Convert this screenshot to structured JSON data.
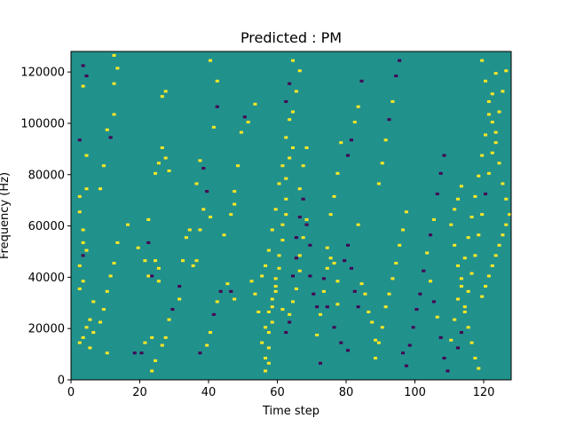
{
  "chart_data": {
    "type": "heatmap",
    "title": "Predicted : PM",
    "xlabel": "Time step",
    "ylabel": "Frequency (Hz)",
    "xlim": [
      0,
      128
    ],
    "ylim": [
      0,
      128000
    ],
    "x_ticks": [
      0,
      20,
      40,
      60,
      80,
      100,
      120
    ],
    "y_ticks": [
      0,
      20000,
      40000,
      60000,
      80000,
      100000,
      120000
    ],
    "x_tick_labels": [
      "0",
      "20",
      "40",
      "60",
      "80",
      "100",
      "120"
    ],
    "y_tick_labels": [
      "0",
      "20000",
      "40000",
      "60000",
      "80000",
      "100000",
      "120000"
    ],
    "grid": false,
    "colormap": "viridis",
    "colors": {
      "background": "#21918c",
      "high": "#fde725",
      "low": "#440154"
    },
    "value_range": [
      -1,
      1
    ],
    "cells": [
      [
        2,
        14,
        1
      ],
      [
        3,
        16,
        1
      ],
      [
        4,
        20,
        1
      ],
      [
        5,
        23,
        1
      ],
      [
        6,
        30,
        1
      ],
      [
        2,
        35,
        1
      ],
      [
        3,
        38,
        1
      ],
      [
        2,
        44,
        1
      ],
      [
        3,
        48,
        -1
      ],
      [
        4,
        50,
        1
      ],
      [
        3,
        53,
        1
      ],
      [
        3,
        58,
        1
      ],
      [
        2,
        65,
        1
      ],
      [
        2,
        71,
        1
      ],
      [
        4,
        74,
        1
      ],
      [
        4,
        87,
        1
      ],
      [
        2,
        93,
        -1
      ],
      [
        3,
        114,
        1
      ],
      [
        4,
        118,
        -1
      ],
      [
        3,
        122,
        -1
      ],
      [
        5,
        12,
        1
      ],
      [
        6,
        18,
        1
      ],
      [
        8,
        22,
        1
      ],
      [
        9,
        27,
        1
      ],
      [
        10,
        34,
        1
      ],
      [
        11,
        40,
        1
      ],
      [
        12,
        45,
        1
      ],
      [
        13,
        53,
        1
      ],
      [
        16,
        60,
        1
      ],
      [
        19,
        51,
        1
      ],
      [
        8,
        74,
        1
      ],
      [
        9,
        83,
        1
      ],
      [
        10,
        97,
        1
      ],
      [
        11,
        94,
        -1
      ],
      [
        12,
        103,
        1
      ],
      [
        12,
        115,
        1
      ],
      [
        13,
        121,
        1
      ],
      [
        12,
        126,
        1
      ],
      [
        10,
        10,
        1
      ],
      [
        18,
        10,
        -1
      ],
      [
        20,
        10,
        -1
      ],
      [
        21,
        14,
        1
      ],
      [
        23,
        16,
        1
      ],
      [
        22,
        40,
        1
      ],
      [
        21,
        46,
        1
      ],
      [
        23,
        40,
        -1
      ],
      [
        25,
        43,
        1
      ],
      [
        24,
        46,
        1
      ],
      [
        25,
        38,
        1
      ],
      [
        22,
        53,
        -1
      ],
      [
        22,
        62,
        1
      ],
      [
        24,
        80,
        1
      ],
      [
        25,
        84,
        1
      ],
      [
        26,
        90,
        1
      ],
      [
        27,
        86,
        1
      ],
      [
        28,
        81,
        1
      ],
      [
        26,
        110,
        1
      ],
      [
        27,
        112,
        1
      ],
      [
        23,
        3,
        1
      ],
      [
        24,
        7,
        1
      ],
      [
        26,
        13,
        1
      ],
      [
        27,
        16,
        1
      ],
      [
        28,
        23,
        1
      ],
      [
        29,
        27,
        -1
      ],
      [
        31,
        31,
        1
      ],
      [
        31,
        36,
        -1
      ],
      [
        32,
        46,
        1
      ],
      [
        33,
        55,
        1
      ],
      [
        34,
        58,
        1
      ],
      [
        35,
        44,
        1
      ],
      [
        36,
        46,
        1
      ],
      [
        37,
        58,
        1
      ],
      [
        38,
        66,
        1
      ],
      [
        40,
        63,
        1
      ],
      [
        36,
        76,
        1
      ],
      [
        37,
        85,
        1
      ],
      [
        38,
        82,
        -1
      ],
      [
        39,
        73,
        -1
      ],
      [
        41,
        98,
        1
      ],
      [
        42,
        106,
        -1
      ],
      [
        42,
        116,
        1
      ],
      [
        40,
        124,
        1
      ],
      [
        37,
        10,
        -1
      ],
      [
        39,
        13,
        1
      ],
      [
        40,
        18,
        1
      ],
      [
        41,
        25,
        -1
      ],
      [
        42,
        30,
        1
      ],
      [
        43,
        34,
        -1
      ],
      [
        45,
        37,
        1
      ],
      [
        46,
        34,
        -1
      ],
      [
        47,
        31,
        1
      ],
      [
        44,
        56,
        1
      ],
      [
        46,
        64,
        1
      ],
      [
        47,
        68,
        1
      ],
      [
        47,
        73,
        1
      ],
      [
        48,
        83,
        1
      ],
      [
        49,
        96,
        1
      ],
      [
        50,
        102,
        -1
      ],
      [
        51,
        100,
        1
      ],
      [
        53,
        107,
        1
      ],
      [
        52,
        38,
        1
      ],
      [
        53,
        33,
        1
      ],
      [
        54,
        26,
        1
      ],
      [
        55,
        40,
        1
      ],
      [
        56,
        44,
        1
      ],
      [
        57,
        50,
        1
      ],
      [
        58,
        58,
        1
      ],
      [
        59,
        66,
        1
      ],
      [
        60,
        76,
        1
      ],
      [
        61,
        83,
        1
      ],
      [
        62,
        94,
        1
      ],
      [
        63,
        101,
        1
      ],
      [
        64,
        104,
        1
      ],
      [
        65,
        112,
        1
      ],
      [
        66,
        120,
        1
      ],
      [
        56,
        8,
        1
      ],
      [
        57,
        12,
        1
      ],
      [
        57,
        18,
        1
      ],
      [
        58,
        22,
        1
      ],
      [
        58,
        28,
        1
      ],
      [
        59,
        34,
        1
      ],
      [
        59,
        39,
        1
      ],
      [
        60,
        43,
        1
      ],
      [
        60,
        48,
        1
      ],
      [
        61,
        54,
        1
      ],
      [
        61,
        60,
        1
      ],
      [
        62,
        64,
        1
      ],
      [
        62,
        70,
        1
      ],
      [
        62,
        78,
        1
      ],
      [
        63,
        86,
        1
      ],
      [
        64,
        90,
        1
      ],
      [
        56,
        3,
        1
      ],
      [
        57,
        6,
        1
      ],
      [
        55,
        14,
        1
      ],
      [
        56,
        20,
        1
      ],
      [
        57,
        26,
        1
      ],
      [
        58,
        31,
        1
      ],
      [
        59,
        36,
        1
      ],
      [
        61,
        27,
        1
      ],
      [
        63,
        25,
        1
      ],
      [
        64,
        30,
        1
      ],
      [
        65,
        35,
        1
      ],
      [
        66,
        42,
        1
      ],
      [
        66,
        48,
        1
      ],
      [
        67,
        55,
        1
      ],
      [
        68,
        62,
        1
      ],
      [
        66,
        74,
        1
      ],
      [
        67,
        83,
        1
      ],
      [
        68,
        90,
        1
      ],
      [
        62,
        18,
        -1
      ],
      [
        63,
        22,
        -1
      ],
      [
        64,
        40,
        -1
      ],
      [
        65,
        47,
        -1
      ],
      [
        65,
        55,
        -1
      ],
      [
        66,
        63,
        -1
      ],
      [
        67,
        70,
        -1
      ],
      [
        68,
        60,
        -1
      ],
      [
        69,
        52,
        -1
      ],
      [
        69,
        40,
        -1
      ],
      [
        70,
        33,
        -1
      ],
      [
        71,
        28,
        -1
      ],
      [
        72,
        6,
        -1
      ],
      [
        62,
        108,
        -1
      ],
      [
        63,
        115,
        -1
      ],
      [
        64,
        124,
        1
      ],
      [
        71,
        17,
        1
      ],
      [
        72,
        25,
        1
      ],
      [
        73,
        34,
        1
      ],
      [
        74,
        43,
        1
      ],
      [
        74,
        51,
        1
      ],
      [
        75,
        47,
        1
      ],
      [
        76,
        45,
        1
      ],
      [
        77,
        38,
        1
      ],
      [
        77,
        29,
        1
      ],
      [
        75,
        64,
        1
      ],
      [
        76,
        71,
        1
      ],
      [
        77,
        80,
        1
      ],
      [
        78,
        92,
        1
      ],
      [
        73,
        39,
        -1
      ],
      [
        74,
        28,
        -1
      ],
      [
        76,
        20,
        -1
      ],
      [
        78,
        14,
        -1
      ],
      [
        80,
        11,
        -1
      ],
      [
        79,
        46,
        -1
      ],
      [
        80,
        52,
        -1
      ],
      [
        81,
        43,
        -1
      ],
      [
        82,
        34,
        -1
      ],
      [
        83,
        28,
        -1
      ],
      [
        83,
        60,
        1
      ],
      [
        84,
        37,
        1
      ],
      [
        85,
        33,
        1
      ],
      [
        86,
        26,
        1
      ],
      [
        87,
        22,
        1
      ],
      [
        88,
        15,
        1
      ],
      [
        80,
        87,
        -1
      ],
      [
        81,
        93,
        -1
      ],
      [
        82,
        100,
        1
      ],
      [
        83,
        106,
        1
      ],
      [
        84,
        116,
        -1
      ],
      [
        88,
        8,
        1
      ],
      [
        89,
        14,
        1
      ],
      [
        90,
        20,
        1
      ],
      [
        91,
        28,
        1
      ],
      [
        92,
        33,
        1
      ],
      [
        93,
        39,
        1
      ],
      [
        94,
        45,
        1
      ],
      [
        95,
        52,
        1
      ],
      [
        96,
        58,
        1
      ],
      [
        97,
        65,
        1
      ],
      [
        89,
        76,
        1
      ],
      [
        90,
        84,
        1
      ],
      [
        91,
        93,
        1
      ],
      [
        92,
        101,
        -1
      ],
      [
        93,
        108,
        1
      ],
      [
        94,
        118,
        -1
      ],
      [
        95,
        124,
        -1
      ],
      [
        96,
        10,
        -1
      ],
      [
        97,
        5,
        -1
      ],
      [
        98,
        13,
        -1
      ],
      [
        99,
        20,
        -1
      ],
      [
        100,
        27,
        -1
      ],
      [
        101,
        33,
        -1
      ],
      [
        102,
        42,
        -1
      ],
      [
        103,
        49,
        1
      ],
      [
        104,
        38,
        1
      ],
      [
        105,
        30,
        -1
      ],
      [
        106,
        24,
        1
      ],
      [
        107,
        16,
        -1
      ],
      [
        108,
        8,
        -1
      ],
      [
        109,
        3,
        -1
      ],
      [
        104,
        56,
        -1
      ],
      [
        105,
        62,
        1
      ],
      [
        106,
        72,
        -1
      ],
      [
        107,
        80,
        -1
      ],
      [
        108,
        87,
        -1
      ],
      [
        110,
        15,
        1
      ],
      [
        111,
        23,
        1
      ],
      [
        112,
        31,
        1
      ],
      [
        113,
        39,
        1
      ],
      [
        114,
        47,
        1
      ],
      [
        115,
        55,
        1
      ],
      [
        116,
        63,
        1
      ],
      [
        117,
        71,
        1
      ],
      [
        118,
        79,
        1
      ],
      [
        119,
        87,
        1
      ],
      [
        120,
        95,
        1
      ],
      [
        121,
        103,
        1
      ],
      [
        122,
        111,
        1
      ],
      [
        123,
        119,
        1
      ],
      [
        112,
        12,
        -1
      ],
      [
        113,
        18,
        -1
      ],
      [
        114,
        26,
        1
      ],
      [
        115,
        34,
        1
      ],
      [
        116,
        41,
        1
      ],
      [
        117,
        48,
        1
      ],
      [
        118,
        56,
        1
      ],
      [
        119,
        64,
        1
      ],
      [
        120,
        72,
        -1
      ],
      [
        121,
        80,
        1
      ],
      [
        122,
        88,
        1
      ],
      [
        123,
        96,
        1
      ],
      [
        124,
        104,
        1
      ],
      [
        125,
        112,
        1
      ],
      [
        126,
        120,
        1
      ],
      [
        110,
        60,
        1
      ],
      [
        111,
        66,
        1
      ],
      [
        112,
        70,
        1
      ],
      [
        113,
        75,
        1
      ],
      [
        111,
        52,
        1
      ],
      [
        112,
        44,
        1
      ],
      [
        113,
        36,
        1
      ],
      [
        114,
        28,
        1
      ],
      [
        115,
        20,
        1
      ],
      [
        116,
        14,
        1
      ],
      [
        117,
        8,
        1
      ],
      [
        118,
        4,
        1
      ],
      [
        119,
        32,
        1
      ],
      [
        120,
        36,
        1
      ],
      [
        121,
        40,
        1
      ],
      [
        122,
        44,
        1
      ],
      [
        123,
        48,
        1
      ],
      [
        124,
        52,
        1
      ],
      [
        125,
        56,
        1
      ],
      [
        126,
        60,
        1
      ],
      [
        127,
        64,
        1
      ],
      [
        126,
        70,
        1
      ],
      [
        125,
        76,
        1
      ],
      [
        124,
        84,
        1
      ],
      [
        123,
        92,
        1
      ],
      [
        122,
        100,
        1
      ],
      [
        121,
        108,
        1
      ],
      [
        120,
        116,
        1
      ],
      [
        119,
        124,
        1
      ]
    ]
  }
}
